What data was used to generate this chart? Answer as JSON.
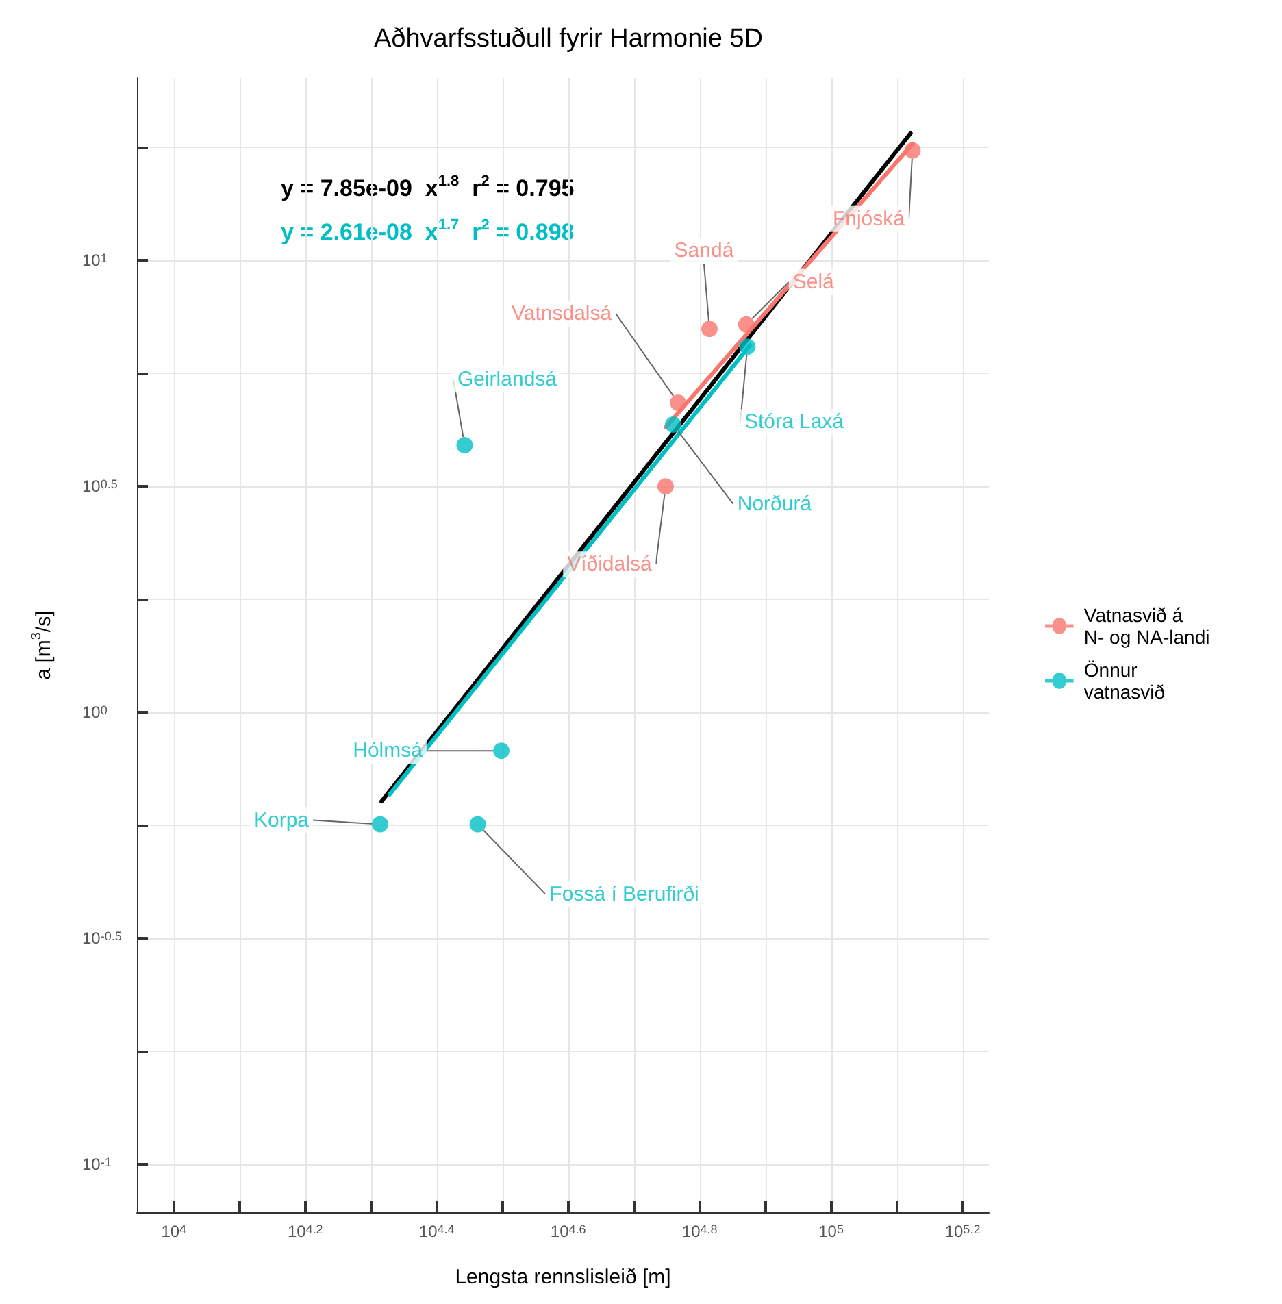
{
  "chart_data": {
    "type": "scatter",
    "title": "Aðhvarfsstuðull fyrir Harmonie 5D",
    "xlabel": "Lengsta rennslisleið [m]",
    "ylabel": "a [m$^{3}$/s]",
    "log": "xy",
    "grid": true,
    "legend": "right",
    "marker": "circle",
    "xlim": [
      8790,
      173800
    ],
    "ylim": [
      0.0783,
      25.3
    ],
    "xticks": [
      {
        "value": 10000,
        "label": "10$^{4}$"
      },
      {
        "value": 12589,
        "label": null
      },
      {
        "value": 15849,
        "label": "10$^{4.2}$"
      },
      {
        "value": 19953,
        "label": null
      },
      {
        "value": 25119,
        "label": "10$^{4.4}$"
      },
      {
        "value": 31623,
        "label": null
      },
      {
        "value": 39811,
        "label": "10$^{4.6}$"
      },
      {
        "value": 50119,
        "label": null
      },
      {
        "value": 63096,
        "label": "10$^{4.8}$"
      },
      {
        "value": 79433,
        "label": null
      },
      {
        "value": 100000,
        "label": "10$^{5}$"
      },
      {
        "value": 125893,
        "label": null
      },
      {
        "value": 158489,
        "label": "10$^{5.2}$"
      }
    ],
    "yticks": [
      {
        "value": 0.1,
        "label": "10$^{-1}$"
      },
      {
        "value": 0.1778,
        "label": null
      },
      {
        "value": 0.3162,
        "label": "10$^{-0.5}$"
      },
      {
        "value": 0.5623,
        "label": null
      },
      {
        "value": 1,
        "label": "10$^{0}$"
      },
      {
        "value": 1.778,
        "label": null
      },
      {
        "value": 3.162,
        "label": "10$^{0.5}$"
      },
      {
        "value": 5.623,
        "label": null
      },
      {
        "value": 10,
        "label": "10$^{1}$"
      },
      {
        "value": 17.78,
        "label": null
      }
    ],
    "series": [
      {
        "name": "Vatnasvið á N- og NA-landi",
        "color": "#f8766d",
        "x": [
          133000,
          65300,
          74300,
          58500,
          56000
        ],
        "values": [
          17.5,
          7.05,
          7.21,
          4.84,
          3.16
        ]
      },
      {
        "name": "Önnur vatnasvið",
        "color": "#00bfc4",
        "x": [
          74600,
          57500,
          27700,
          31500,
          20600,
          29000
        ],
        "values": [
          6.44,
          4.33,
          3.9,
          0.822,
          0.565,
          0.565
        ]
      },
      {
        "type": "line",
        "marker": "none",
        "color": "#000000",
        "x": [
          20700,
          132100
        ],
        "values": [
          0.635,
          19.1
        ]
      },
      {
        "type": "line",
        "marker": "none",
        "color": "#00bfc4",
        "x": [
          21300,
          75300
        ],
        "values": [
          0.658,
          6.49
        ]
      },
      {
        "type": "line",
        "marker": "none",
        "color": "#f8766d",
        "x": [
          56000,
          133000
        ],
        "values": [
          4.27,
          18.1
        ]
      }
    ],
    "annotations": [
      "y = 7.85e-09  x$^{1.8}$  r$^{2}$ = 0.795",
      "y = 2.61e-08  x$^{1.7}$  r$^{2}$ = 0.898",
      {
        "text": "Fnjóská",
        "x": 133000,
        "y": 17.5
      },
      {
        "text": "Sandá",
        "x": 65300,
        "y": 7.05
      },
      {
        "text": "Selá",
        "x": 74300,
        "y": 7.21
      },
      {
        "text": "Vatnsdalsá",
        "x": 58500,
        "y": 4.84
      },
      {
        "text": "Víðidalsá",
        "x": 56000,
        "y": 3.16
      },
      {
        "text": "Stóra Laxá",
        "x": 74600,
        "y": 6.44
      },
      {
        "text": "Norðurá",
        "x": 57500,
        "y": 4.33
      },
      {
        "text": "Geirlandsá",
        "x": 27700,
        "y": 3.9
      },
      {
        "text": "Hólmsá",
        "x": 31500,
        "y": 0.822
      },
      {
        "text": "Korpa",
        "x": 20600,
        "y": 0.565
      },
      {
        "text": "Fossá í Berufirði",
        "x": 29000,
        "y": 0.565
      }
    ]
  }
}
